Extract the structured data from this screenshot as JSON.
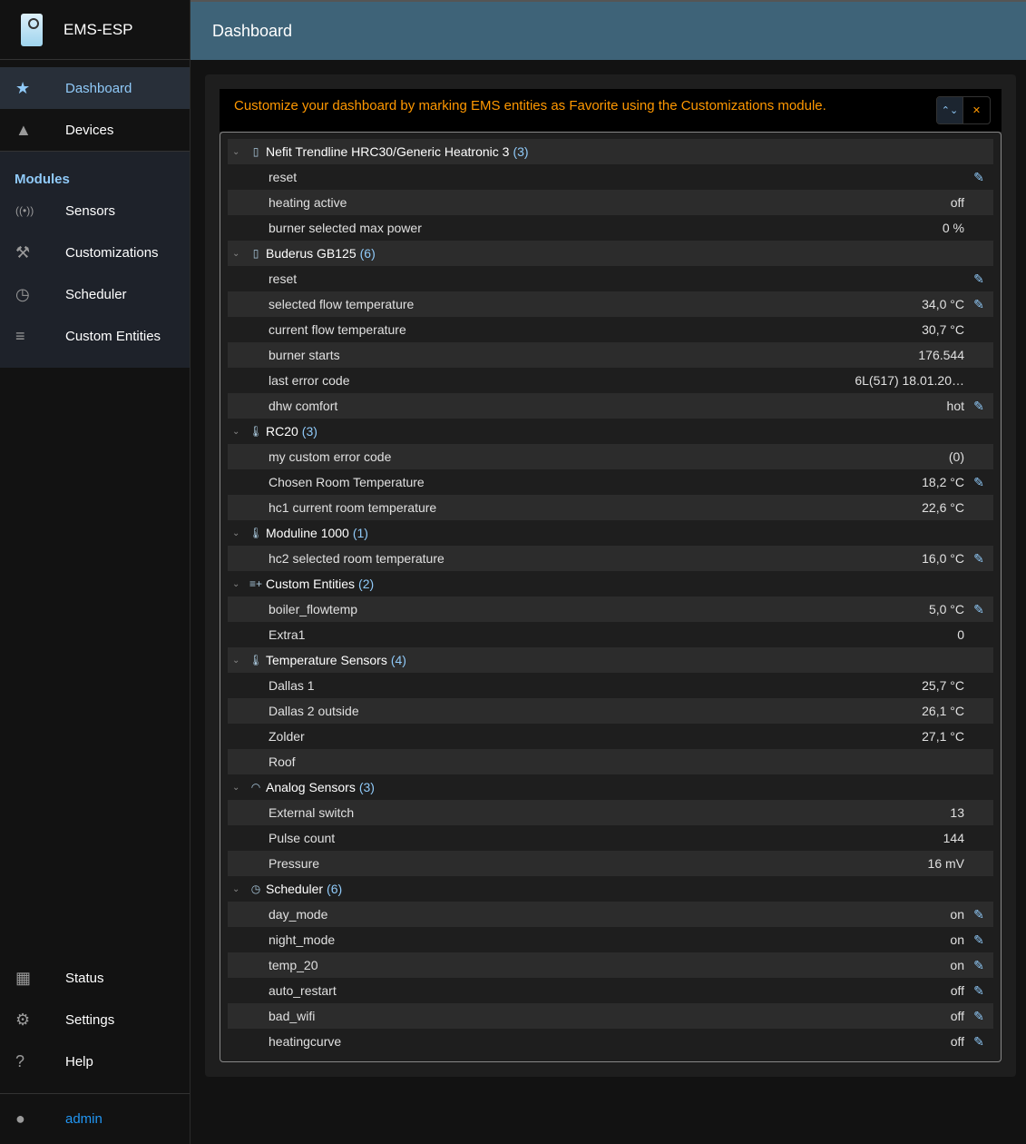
{
  "app": {
    "title": "EMS-ESP"
  },
  "header": {
    "title": "Dashboard"
  },
  "sidebar": {
    "top": [
      {
        "label": "Dashboard",
        "icon": "star-icon"
      },
      {
        "label": "Devices",
        "icon": "category-icon"
      }
    ],
    "modules_heading": "Modules",
    "modules": [
      {
        "label": "Sensors",
        "icon": "sensors-icon"
      },
      {
        "label": "Customizations",
        "icon": "construction-icon"
      },
      {
        "label": "Scheduler",
        "icon": "more-time-icon"
      },
      {
        "label": "Custom Entities",
        "icon": "playlist-add-icon"
      }
    ],
    "bottom": [
      {
        "label": "Status",
        "icon": "assessment-icon"
      },
      {
        "label": "Settings",
        "icon": "settings-icon"
      },
      {
        "label": "Help",
        "icon": "help-icon"
      }
    ],
    "user": "admin"
  },
  "banner": {
    "message": "Customize your dashboard by marking EMS entities as Favorite using the Customizations module.",
    "expand_icon": "unfold-more-icon",
    "collapse_icon": "unfold-less-icon"
  },
  "colors": {
    "accent": "#90caf9",
    "warning": "#ff9800",
    "header": "#3e6378"
  },
  "groups": [
    {
      "name": "Nefit Trendline HRC30/Generic Heatronic 3",
      "count": "(3)",
      "icon": "boiler-icon",
      "rows": [
        {
          "name": "reset",
          "value": "",
          "editable": true
        },
        {
          "name": "heating active",
          "value": "off",
          "editable": false
        },
        {
          "name": "burner selected max power",
          "value": "0 %",
          "editable": false
        }
      ]
    },
    {
      "name": "Buderus GB125",
      "count": "(6)",
      "icon": "boiler-icon",
      "rows": [
        {
          "name": "reset",
          "value": "",
          "editable": true
        },
        {
          "name": "selected flow temperature",
          "value": "34,0 °C",
          "editable": true
        },
        {
          "name": "current flow temperature",
          "value": "30,7 °C",
          "editable": false
        },
        {
          "name": "burner starts",
          "value": "176.544",
          "editable": false
        },
        {
          "name": "last error code",
          "value": "6L(517) 18.01.20…",
          "editable": false
        },
        {
          "name": "dhw comfort",
          "value": "hot",
          "editable": true
        }
      ]
    },
    {
      "name": "RC20",
      "count": "(3)",
      "icon": "thermostat-auto-icon",
      "rows": [
        {
          "name": "my custom error code",
          "value": "(0)",
          "editable": false
        },
        {
          "name": "Chosen Room Temperature",
          "value": "18,2 °C",
          "editable": true
        },
        {
          "name": "hc1 current room temperature",
          "value": "22,6 °C",
          "editable": false
        }
      ]
    },
    {
      "name": "Moduline 1000",
      "count": "(1)",
      "icon": "thermostat-auto-icon",
      "rows": [
        {
          "name": "hc2 selected room temperature",
          "value": "16,0 °C",
          "editable": true
        }
      ]
    },
    {
      "name": "Custom Entities",
      "count": "(2)",
      "icon": "playlist-add-icon",
      "rows": [
        {
          "name": "boiler_flowtemp",
          "value": "5,0 °C",
          "editable": true
        },
        {
          "name": "Extra1",
          "value": "0",
          "editable": false
        }
      ]
    },
    {
      "name": "Temperature Sensors",
      "count": "(4)",
      "icon": "thermometer-icon",
      "rows": [
        {
          "name": "Dallas 1",
          "value": "25,7 °C",
          "editable": false
        },
        {
          "name": "Dallas 2 outside",
          "value": "26,1 °C",
          "editable": false
        },
        {
          "name": "Zolder",
          "value": "27,1 °C",
          "editable": false
        },
        {
          "name": "Roof",
          "value": "",
          "editable": false
        }
      ]
    },
    {
      "name": "Analog Sensors",
      "count": "(3)",
      "icon": "speed-icon",
      "rows": [
        {
          "name": "External switch",
          "value": "13",
          "editable": false
        },
        {
          "name": "Pulse count",
          "value": "144",
          "editable": false
        },
        {
          "name": "Pressure",
          "value": "16 mV",
          "editable": false
        }
      ]
    },
    {
      "name": "Scheduler",
      "count": "(6)",
      "icon": "more-time-icon",
      "rows": [
        {
          "name": "day_mode",
          "value": "on",
          "editable": true
        },
        {
          "name": "night_mode",
          "value": "on",
          "editable": true
        },
        {
          "name": "temp_20",
          "value": "on",
          "editable": true
        },
        {
          "name": "auto_restart",
          "value": "off",
          "editable": true
        },
        {
          "name": "bad_wifi",
          "value": "off",
          "editable": true
        },
        {
          "name": "heatingcurve",
          "value": "off",
          "editable": true
        }
      ]
    }
  ]
}
